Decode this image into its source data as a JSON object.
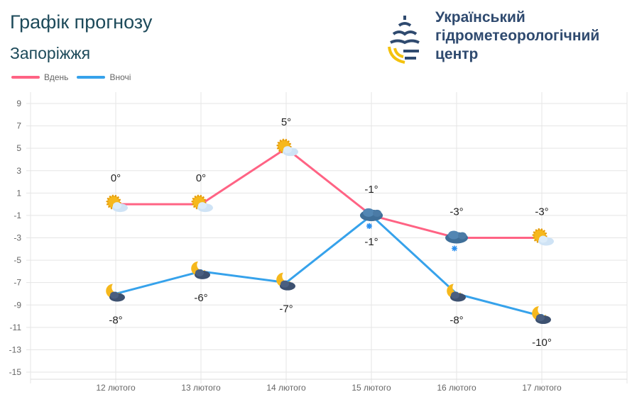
{
  "header": {
    "title": "Графік прогнозу",
    "city": "Запоріжжя",
    "org_lines": [
      "Український",
      "гідрометеорологічний",
      "центр"
    ]
  },
  "colors": {
    "day": "#ff6384",
    "night": "#36a2eb",
    "title": "#1d4a5a"
  },
  "chart_data": {
    "type": "line",
    "categories": [
      "12 лютого",
      "13 лютого",
      "14 лютого",
      "15 лютого",
      "16 лютого",
      "17 лютого"
    ],
    "series": [
      {
        "name": "Вдень",
        "values": [
          0,
          0,
          5,
          -1,
          -3,
          -3
        ],
        "labels": [
          "0°",
          "0°",
          "5°",
          "-1°",
          "-3°",
          "-3°"
        ],
        "icons": [
          "sun-cloud-icon",
          "sun-cloud-icon",
          "sun-cloud-icon",
          "snow-cloud-icon",
          "snow-cloud-icon",
          "sun-cloud-icon"
        ]
      },
      {
        "name": "Вночі",
        "values": [
          -8,
          -6,
          -7,
          -1,
          -8,
          -10
        ],
        "labels": [
          "-8°",
          "-6°",
          "-7°",
          "-1°",
          "-8°",
          "-10°"
        ],
        "icons": [
          "moon-cloud-icon",
          "moon-cloud-icon",
          "moon-cloud-icon",
          "snow-cloud-icon",
          "moon-cloud-icon",
          "moon-cloud-icon"
        ]
      }
    ],
    "yticks": [
      9,
      7,
      5,
      3,
      1,
      -1,
      -3,
      -5,
      -7,
      -9,
      -11,
      -13,
      -15
    ],
    "ylim": [
      -15,
      9
    ],
    "grid": true,
    "legend": "top-left",
    "xlabel": "",
    "ylabel": ""
  }
}
